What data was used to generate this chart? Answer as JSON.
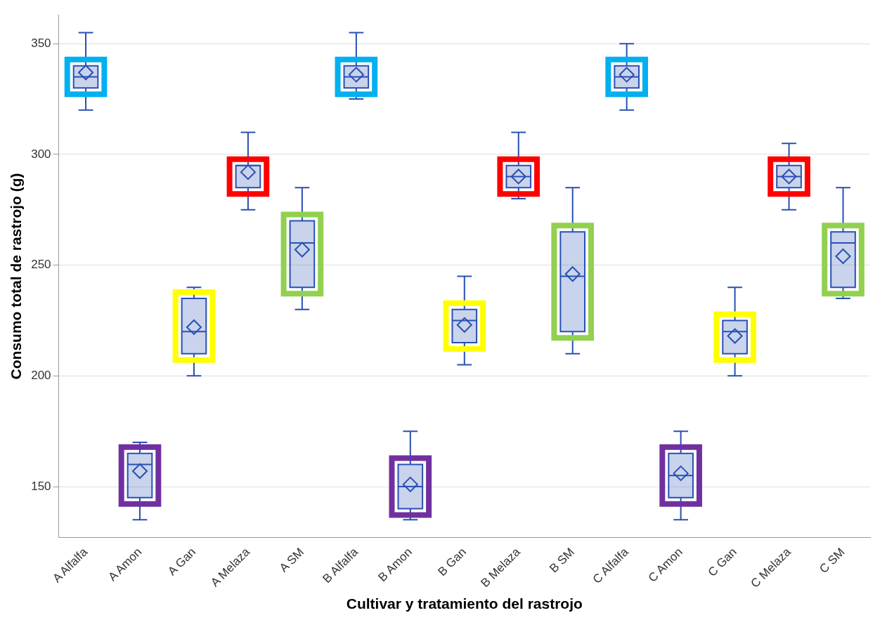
{
  "chart_data": {
    "type": "box",
    "xlabel": "Cultivar y tratamiento del rastrojo",
    "ylabel": "Consumo total de rastrojo (g)",
    "categories": [
      "A Alfalfa",
      "A Amon",
      "A Gan",
      "A Melaza",
      "A SM",
      "B Alfalfa",
      "B Amon",
      "B Gan",
      "B Melaza",
      "B SM",
      "C Alfalfa",
      "C Amon",
      "C Gan",
      "C Melaza",
      "C SM"
    ],
    "series": [
      {
        "color": "#2850b4",
        "boxes": [
          {
            "low": 320,
            "q1": 330,
            "median": 335,
            "q3": 340,
            "high": 355,
            "mean": 337
          },
          {
            "low": 135,
            "q1": 145,
            "median": 160,
            "q3": 165,
            "high": 170,
            "mean": 157
          },
          {
            "low": 200,
            "q1": 210,
            "median": 220,
            "q3": 235,
            "high": 240,
            "mean": 222
          },
          {
            "low": 275,
            "q1": 285,
            "median": 295,
            "q3": 295,
            "high": 310,
            "mean": 292
          },
          {
            "low": 230,
            "q1": 240,
            "median": 260,
            "q3": 270,
            "high": 285,
            "mean": 257
          },
          {
            "low": 325,
            "q1": 330,
            "median": 335,
            "q3": 340,
            "high": 355,
            "mean": 336
          },
          {
            "low": 135,
            "q1": 140,
            "median": 150,
            "q3": 160,
            "high": 175,
            "mean": 151
          },
          {
            "low": 205,
            "q1": 215,
            "median": 225,
            "q3": 230,
            "high": 245,
            "mean": 223
          },
          {
            "low": 280,
            "q1": 285,
            "median": 290,
            "q3": 295,
            "high": 310,
            "mean": 290
          },
          {
            "low": 210,
            "q1": 220,
            "median": 245,
            "q3": 265,
            "high": 285,
            "mean": 246
          },
          {
            "low": 320,
            "q1": 330,
            "median": 335,
            "q3": 340,
            "high": 350,
            "mean": 336
          },
          {
            "low": 135,
            "q1": 145,
            "median": 155,
            "q3": 165,
            "high": 175,
            "mean": 156
          },
          {
            "low": 200,
            "q1": 210,
            "median": 220,
            "q3": 225,
            "high": 240,
            "mean": 218
          },
          {
            "low": 275,
            "q1": 285,
            "median": 290,
            "q3": 295,
            "high": 305,
            "mean": 290
          },
          {
            "low": 235,
            "q1": 240,
            "median": 260,
            "q3": 265,
            "high": 285,
            "mean": 254
          }
        ]
      }
    ],
    "colors": [
      "#00b0f0",
      "#7030a0",
      "#ffff00",
      "#ff0000",
      "#92d050",
      "#00b0f0",
      "#7030a0",
      "#ffff00",
      "#ff0000",
      "#92d050",
      "#00b0f0",
      "#7030a0",
      "#ffff00",
      "#ff0000",
      "#92d050"
    ],
    "ylim": [
      127,
      363
    ],
    "yticks": [
      150,
      200,
      250,
      300,
      350
    ],
    "grid": "y",
    "legend": false,
    "marker": "diamond"
  }
}
